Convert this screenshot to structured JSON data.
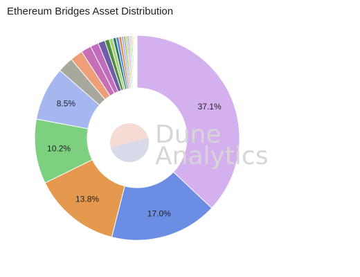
{
  "chart_data": {
    "type": "pie",
    "title": "Ethereum Bridges Asset Distribution",
    "donut": true,
    "label_threshold_percent": 5,
    "slices": [
      {
        "value": 37.1,
        "label": "37.1%",
        "color": "#d4b0ef"
      },
      {
        "value": 17.0,
        "label": "17.0%",
        "color": "#6b8ee4"
      },
      {
        "value": 13.8,
        "label": "13.8%",
        "color": "#e4994f"
      },
      {
        "value": 10.2,
        "label": "10.2%",
        "color": "#7dd07f"
      },
      {
        "value": 8.5,
        "label": "8.5%",
        "color": "#a4b7ee"
      },
      {
        "value": 2.5,
        "color": "#a8a89d"
      },
      {
        "value": 2.0,
        "color": "#ee9e78"
      },
      {
        "value": 1.6,
        "color": "#c66fb5"
      },
      {
        "value": 1.3,
        "color": "#c26cc0"
      },
      {
        "value": 1.1,
        "color": "#6e5ea8"
      },
      {
        "value": 0.7,
        "color": "#4d8f3c"
      },
      {
        "value": 0.6,
        "color": "#a9d17d"
      },
      {
        "value": 0.5,
        "color": "#2f7a6b"
      },
      {
        "value": 0.45,
        "color": "#5b83d6"
      },
      {
        "value": 0.4,
        "color": "#e0863f"
      },
      {
        "value": 0.35,
        "color": "#b4a8dd"
      },
      {
        "value": 0.3,
        "color": "#6fbf7a"
      },
      {
        "value": 0.28,
        "color": "#e7b86f"
      },
      {
        "value": 0.25,
        "color": "#8aa3e6"
      },
      {
        "value": 0.22,
        "color": "#c9c16a"
      },
      {
        "value": 0.2,
        "color": "#8fd3b6"
      },
      {
        "value": 0.18,
        "color": "#e89ba8"
      },
      {
        "value": 0.16,
        "color": "#f3d99a"
      },
      {
        "value": 0.14,
        "color": "#bde0a8"
      },
      {
        "value": 0.12,
        "color": "#d7d1ee"
      },
      {
        "value": 0.1,
        "color": "#f0c7a8"
      },
      {
        "value": 0.09,
        "color": "#cfe3f1"
      },
      {
        "value": 0.08,
        "color": "#efe6b8"
      }
    ]
  },
  "watermark": {
    "line1": "Dune",
    "line2": "Analytics"
  }
}
